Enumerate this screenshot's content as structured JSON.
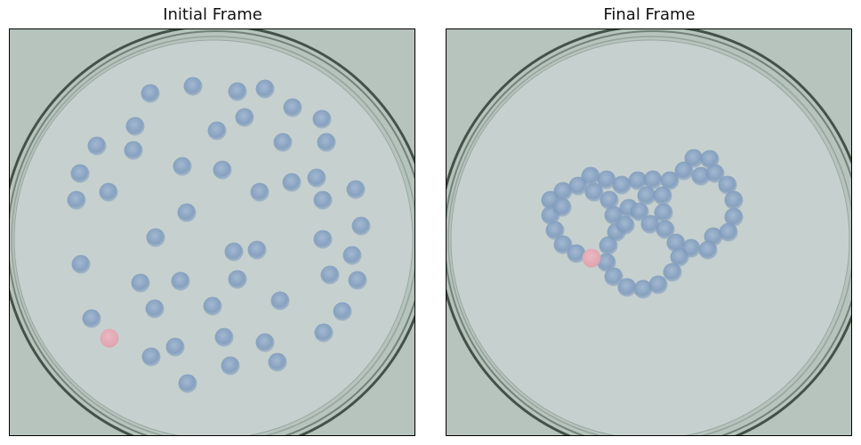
{
  "panels": [
    {
      "id": "left",
      "title": "Initial Frame"
    },
    {
      "id": "right",
      "title": "Final Frame"
    }
  ],
  "colors": {
    "dish_outer": "#b7c3bd",
    "dish_inner": "#c6d1cf",
    "rim_dark": "#2f3d33",
    "bead": "#7f9bbd",
    "marked_bead": "#e0a0ad"
  }
}
